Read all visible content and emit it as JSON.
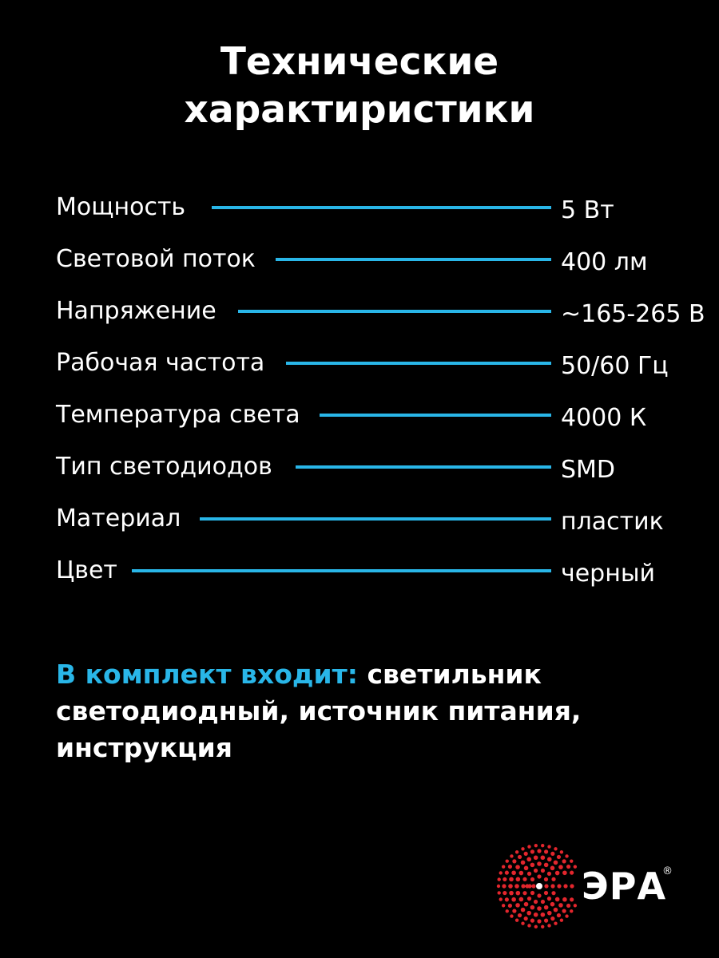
{
  "title": {
    "line1": "Технические",
    "line2": "характиристики"
  },
  "specs": [
    {
      "label": "Мощность",
      "value": "5 Вт"
    },
    {
      "label": "Световой поток",
      "value": "400 лм"
    },
    {
      "label": "Напряжение",
      "value": "~165-265 В"
    },
    {
      "label": "Рабочая частота",
      "value": "50/60 Гц"
    },
    {
      "label": "Температура света",
      "value": "4000 К"
    },
    {
      "label": "Тип светодиодов",
      "value": "SMD"
    },
    {
      "label": "Материал",
      "value": "пластик"
    },
    {
      "label": "Цвет",
      "value": "черный"
    }
  ],
  "kit": {
    "label": "В комплект входит:",
    "text": " светильник светодиодный, источник питания, инструкция"
  },
  "logo": {
    "text": "ЭРА",
    "reg": "®",
    "icon": "dotted-sun-icon"
  },
  "colors": {
    "background": "#000000",
    "text": "#ffffff",
    "accent": "#29b6e8",
    "logo_red": "#e3262d"
  }
}
